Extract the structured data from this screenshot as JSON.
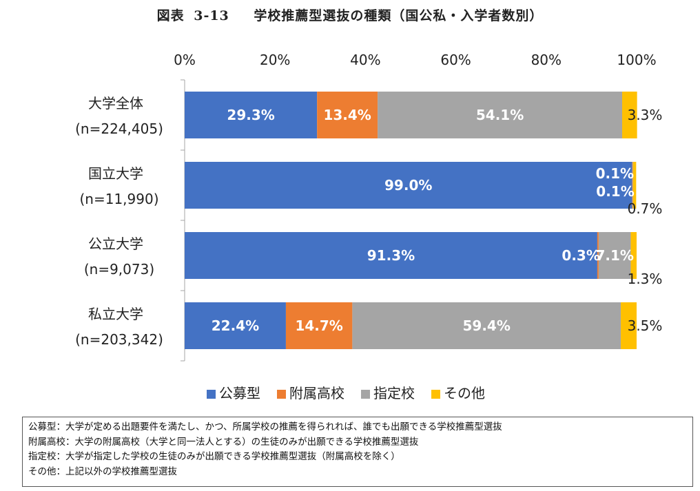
{
  "title": {
    "prefix": "図表",
    "number": "3-13",
    "text": "学校推薦型選抜の種類（国公私・入学者数別）"
  },
  "colors": {
    "公募型": "#4472C4",
    "附属高校": "#ED7D31",
    "指定校": "#A5A5A5",
    "その他": "#FFC000"
  },
  "chart_data": {
    "type": "bar",
    "orientation": "horizontal",
    "stacked": "percent",
    "title": "学校推薦型選抜の種類（国公私・入学者数別）",
    "categories": [
      {
        "name": "大学全体",
        "n": "(n=224,405)"
      },
      {
        "name": "国立大学",
        "n": "(n=11,990)"
      },
      {
        "name": "公立大学",
        "n": "(n=9,073)"
      },
      {
        "name": "私立大学",
        "n": "(n=203,342)"
      }
    ],
    "series": [
      {
        "name": "公募型",
        "values": [
          29.3,
          99.0,
          91.3,
          22.4
        ],
        "labels": [
          "29.3%",
          "99.0%",
          "91.3%",
          "22.4%"
        ]
      },
      {
        "name": "附属高校",
        "values": [
          13.4,
          0.1,
          0.3,
          14.7
        ],
        "labels": [
          "13.4%",
          "0.1%",
          "0.3%",
          "14.7%"
        ]
      },
      {
        "name": "指定校",
        "values": [
          54.1,
          0.1,
          7.1,
          59.4
        ],
        "labels": [
          "54.1%",
          "0.1%",
          "7.1%",
          "59.4%"
        ]
      },
      {
        "name": "その他",
        "values": [
          3.3,
          0.7,
          1.3,
          3.5
        ],
        "labels": [
          "3.3%",
          "0.7%",
          "1.3%",
          "3.5%"
        ]
      }
    ],
    "xlim": [
      0,
      100
    ],
    "xticks": [
      "0%",
      "20%",
      "40%",
      "60%",
      "80%",
      "100%"
    ],
    "legend_position": "bottom",
    "grid": false
  },
  "notes": [
    "公募型：大学が定める出題要件を満たし、かつ、所属学校の推薦を得られれば、誰でも出願できる学校推薦型選抜",
    "附属高校：大学の附属高校（大学と同一法人とする）の生徒のみが出願できる学校推薦型選抜",
    "指定校：大学が指定した学校の生徒のみが出願できる学校推薦型選抜（附属高校を除く）",
    "その他：上記以外の学校推薦型選抜"
  ]
}
